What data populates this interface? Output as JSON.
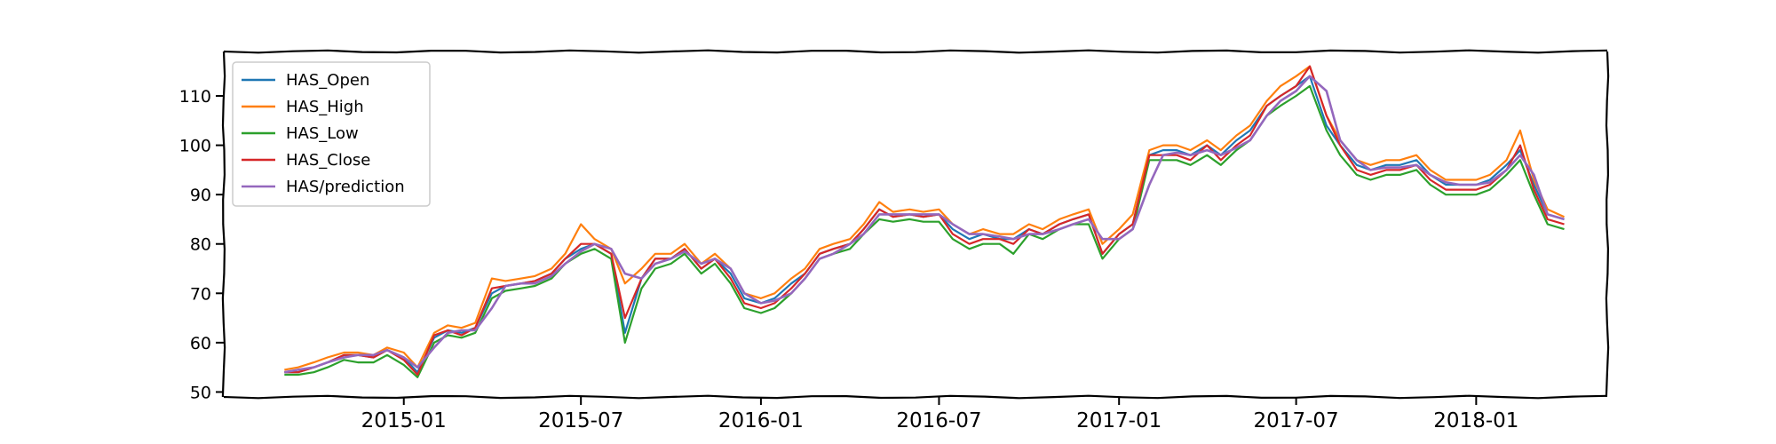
{
  "chart_data": {
    "type": "line",
    "title": "",
    "xlabel": "",
    "ylabel": "",
    "xlim": [
      "2014-07-01",
      "2018-05-15"
    ],
    "ylim": [
      49,
      119
    ],
    "yticks": [
      50,
      60,
      70,
      80,
      90,
      100,
      110
    ],
    "xticks": [
      "2015-01",
      "2015-07",
      "2016-01",
      "2016-07",
      "2017-01",
      "2017-07",
      "2018-01"
    ],
    "grid": false,
    "legend_position": "top-left",
    "x": [
      "2014-09-01",
      "2014-09-15",
      "2014-10-01",
      "2014-10-15",
      "2014-11-01",
      "2014-11-15",
      "2014-12-01",
      "2014-12-15",
      "2015-01-01",
      "2015-01-15",
      "2015-02-01",
      "2015-02-15",
      "2015-03-01",
      "2015-03-15",
      "2015-04-01",
      "2015-04-15",
      "2015-05-01",
      "2015-05-15",
      "2015-06-01",
      "2015-06-15",
      "2015-07-01",
      "2015-07-15",
      "2015-08-01",
      "2015-08-15",
      "2015-09-01",
      "2015-09-15",
      "2015-10-01",
      "2015-10-15",
      "2015-11-01",
      "2015-11-15",
      "2015-12-01",
      "2015-12-15",
      "2016-01-01",
      "2016-01-15",
      "2016-02-01",
      "2016-02-15",
      "2016-03-01",
      "2016-03-15",
      "2016-04-01",
      "2016-04-15",
      "2016-05-01",
      "2016-05-15",
      "2016-06-01",
      "2016-06-15",
      "2016-07-01",
      "2016-07-15",
      "2016-08-01",
      "2016-08-15",
      "2016-09-01",
      "2016-09-15",
      "2016-10-01",
      "2016-10-15",
      "2016-11-01",
      "2016-11-15",
      "2016-12-01",
      "2016-12-15",
      "2017-01-01",
      "2017-01-15",
      "2017-02-01",
      "2017-02-15",
      "2017-03-01",
      "2017-03-15",
      "2017-04-01",
      "2017-04-15",
      "2017-05-01",
      "2017-05-15",
      "2017-06-01",
      "2017-06-15",
      "2017-07-01",
      "2017-07-15",
      "2017-08-01",
      "2017-08-15",
      "2017-09-01",
      "2017-09-15",
      "2017-10-01",
      "2017-10-15",
      "2017-11-01",
      "2017-11-15",
      "2017-12-01",
      "2017-12-15",
      "2018-01-01",
      "2018-01-15",
      "2018-02-01",
      "2018-02-15",
      "2018-03-01",
      "2018-03-15",
      "2018-04-01"
    ],
    "series": [
      {
        "name": "HAS_Open",
        "color": "#1f77b4",
        "values": [
          54,
          54,
          55,
          56,
          57.5,
          57.5,
          57,
          58.5,
          57,
          54,
          61,
          62.5,
          62,
          63,
          70,
          71.5,
          72,
          72.5,
          74,
          77,
          79,
          80,
          78,
          62,
          73,
          77,
          77,
          79,
          75,
          77,
          74,
          69,
          68,
          69,
          72,
          74,
          78,
          79,
          80,
          83,
          87,
          85.5,
          86,
          85.5,
          86,
          83,
          81,
          82,
          81,
          81,
          83,
          82,
          84,
          85,
          86,
          78,
          82,
          84,
          98,
          99,
          99,
          98,
          100,
          98,
          101,
          103,
          108,
          110,
          112,
          114,
          104,
          100,
          96,
          95,
          96,
          96,
          97,
          94,
          92,
          92,
          92,
          93,
          96,
          99,
          92,
          86,
          85
        ]
      },
      {
        "name": "HAS_High",
        "color": "#ff7f0e",
        "values": [
          54.5,
          55,
          56,
          57,
          58,
          58,
          57.5,
          59,
          58,
          55,
          62,
          63.5,
          63,
          64,
          73,
          72.5,
          73,
          73.5,
          75,
          78,
          84,
          81,
          79,
          72,
          75,
          78,
          78,
          80,
          76,
          78,
          75,
          70,
          69,
          70,
          73,
          75,
          79,
          80,
          81,
          84,
          88.5,
          86.5,
          87,
          86.5,
          87,
          84,
          82,
          83,
          82,
          82,
          84,
          83,
          85,
          86,
          87,
          80,
          83,
          86,
          99,
          100,
          100,
          99,
          101,
          99,
          102,
          104,
          109,
          112,
          114,
          116,
          106,
          101,
          97,
          96,
          97,
          97,
          98,
          95,
          93,
          93,
          93,
          94,
          97,
          103,
          93,
          87,
          85.5
        ]
      },
      {
        "name": "HAS_Low",
        "color": "#2ca02c",
        "values": [
          53.5,
          53.5,
          54,
          55,
          56.5,
          56,
          56,
          57.5,
          55.5,
          53,
          60,
          61.5,
          61,
          62,
          69,
          70.5,
          71,
          71.5,
          73,
          76,
          78,
          79,
          77,
          60,
          71,
          75,
          76,
          78,
          74,
          76,
          72,
          67,
          66,
          67,
          70,
          73,
          77,
          78,
          79,
          82,
          85,
          84.5,
          85,
          84.5,
          84.5,
          81,
          79,
          80,
          80,
          78,
          82,
          81,
          83,
          84,
          84,
          77,
          81,
          83,
          97,
          97,
          97,
          96,
          98,
          96,
          99,
          101,
          106,
          108,
          110,
          112,
          103,
          98,
          94,
          93,
          94,
          94,
          95,
          92,
          90,
          90,
          90,
          91,
          94,
          97,
          90,
          84,
          83
        ]
      },
      {
        "name": "HAS_Close",
        "color": "#d62728",
        "values": [
          54,
          54,
          55,
          56,
          57.5,
          57.5,
          57,
          58.5,
          56.5,
          53.5,
          61.5,
          62.5,
          61.5,
          63,
          71,
          71.5,
          72,
          72.5,
          74,
          77,
          80,
          80,
          78,
          65,
          73,
          77,
          77,
          79,
          75,
          77,
          73,
          68,
          67,
          68,
          71,
          74,
          78,
          79,
          80,
          83,
          87,
          85.5,
          86,
          85.5,
          86,
          82,
          80,
          81,
          81,
          80,
          83,
          82,
          84,
          85,
          86,
          78,
          82,
          84,
          98,
          98,
          98,
          97,
          100,
          97,
          100,
          102,
          108,
          110,
          112,
          116,
          106,
          100,
          95,
          94,
          95,
          95,
          96,
          93,
          91,
          91,
          91,
          92,
          95,
          100,
          91,
          85,
          84
        ]
      },
      {
        "name": "HAS/prediction",
        "color": "#9467bd",
        "values": [
          54,
          54.5,
          55,
          56,
          57,
          57.5,
          57.5,
          58.5,
          57,
          55,
          59,
          62,
          62.5,
          62.5,
          67,
          71.5,
          72,
          72,
          73.5,
          76,
          78.5,
          80,
          79,
          74,
          73,
          76,
          77,
          78.5,
          76,
          77,
          75,
          70,
          68,
          68.5,
          70,
          73,
          77,
          78,
          80,
          82,
          86,
          86,
          86,
          86,
          86,
          84,
          82,
          82,
          81.5,
          81,
          82,
          82,
          83,
          84,
          85,
          81,
          81,
          83,
          92,
          98,
          98.5,
          98,
          99,
          98,
          99.5,
          101,
          106,
          109,
          111,
          114,
          111,
          101,
          97,
          95,
          95.5,
          95.5,
          96,
          94,
          92.5,
          92,
          92,
          92.5,
          95,
          98,
          94,
          86,
          85
        ]
      }
    ]
  }
}
